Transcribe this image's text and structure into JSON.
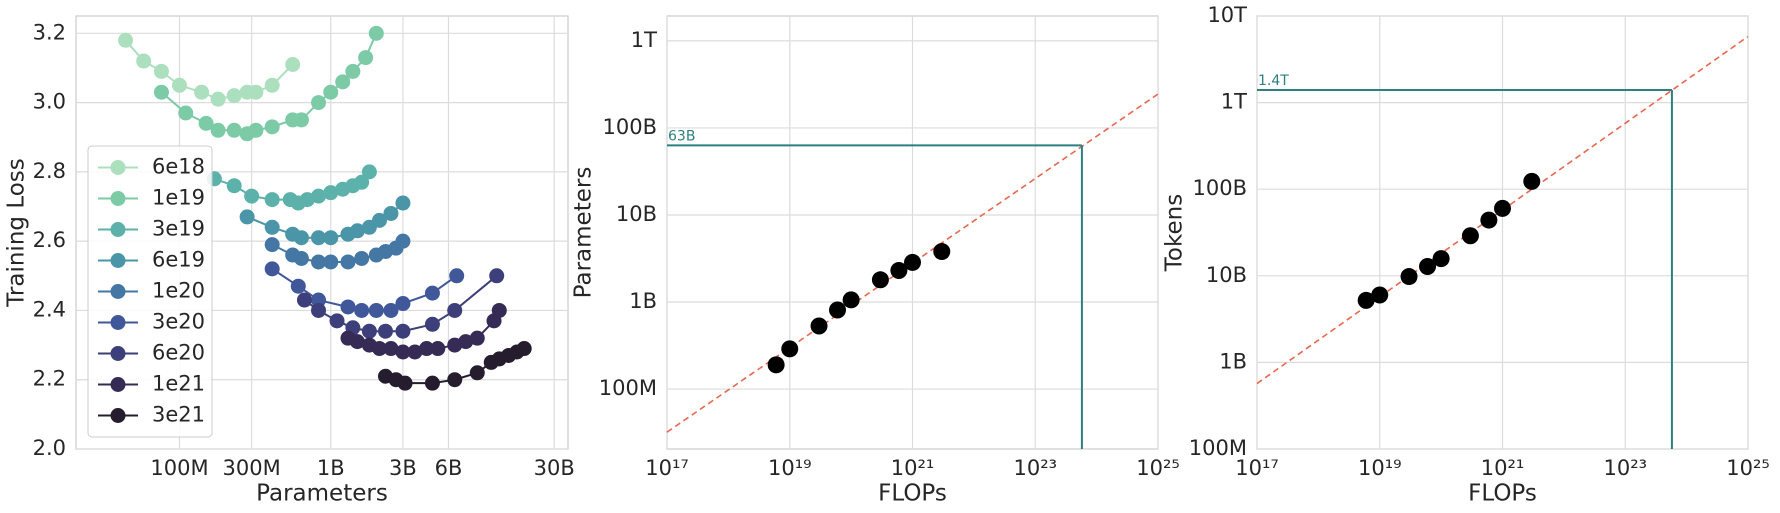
{
  "chart_data": [
    {
      "type": "line",
      "xlabel": "Parameters",
      "ylabel": "Training Loss",
      "xscale": "log",
      "yscale": "linear",
      "xlim": [
        20700000,
        37000000000
      ],
      "ylim": [
        2.0,
        3.25
      ],
      "xticks": [
        {
          "value": 100000000,
          "label": "100M"
        },
        {
          "value": 300000000,
          "label": "300M"
        },
        {
          "value": 1000000000,
          "label": "1B"
        },
        {
          "value": 3000000000,
          "label": "3B"
        },
        {
          "value": 6000000000,
          "label": "6B"
        },
        {
          "value": 30000000000,
          "label": "30B"
        }
      ],
      "yticks": [
        {
          "value": 2.0,
          "label": "2.0"
        },
        2.2,
        2.4,
        2.6,
        2.8,
        {
          "value": 3.0,
          "label": "3.0"
        },
        3.2
      ],
      "grid": true,
      "legend": "lower left",
      "series": [
        {
          "name": "6e18",
          "color": "#acdfbd",
          "x": [
            44000000,
            58000000,
            76000000,
            100000000,
            140000000,
            180000000,
            230000000,
            280000000,
            320000000,
            410000000,
            560000000
          ],
          "values": [
            3.18,
            3.12,
            3.09,
            3.05,
            3.03,
            3.01,
            3.02,
            3.03,
            3.03,
            3.05,
            3.11
          ]
        },
        {
          "name": "1e19",
          "color": "#7dcaa7",
          "x": [
            76000000,
            110000000,
            150000000,
            180000000,
            230000000,
            280000000,
            320000000,
            410000000,
            560000000,
            640000000,
            830000000,
            1000000000,
            1200000000,
            1400000000,
            1700000000,
            2000000000
          ],
          "values": [
            3.03,
            2.97,
            2.94,
            2.92,
            2.92,
            2.91,
            2.92,
            2.93,
            2.95,
            2.95,
            3.0,
            3.03,
            3.06,
            3.09,
            3.13,
            3.2
          ]
        },
        {
          "name": "3e19",
          "color": "#5cb2aa",
          "x": [
            170000000,
            230000000,
            300000000,
            410000000,
            540000000,
            610000000,
            700000000,
            830000000,
            1000000000,
            1200000000,
            1400000000,
            1600000000,
            1800000000
          ],
          "values": [
            2.78,
            2.76,
            2.73,
            2.72,
            2.72,
            2.71,
            2.72,
            2.73,
            2.74,
            2.75,
            2.76,
            2.77,
            2.8
          ]
        },
        {
          "name": "6e19",
          "color": "#4a95a7",
          "x": [
            280000000,
            410000000,
            560000000,
            640000000,
            830000000,
            1000000000,
            1300000000,
            1500000000,
            1800000000,
            2100000000,
            2500000000,
            3000000000
          ],
          "values": [
            2.67,
            2.64,
            2.62,
            2.61,
            2.61,
            2.61,
            2.62,
            2.63,
            2.64,
            2.66,
            2.68,
            2.71
          ]
        },
        {
          "name": "1e20",
          "color": "#4577a5",
          "x": [
            410000000,
            560000000,
            640000000,
            830000000,
            1000000000,
            1300000000,
            1600000000,
            2000000000,
            2300000000,
            2700000000,
            3000000000
          ],
          "values": [
            2.59,
            2.56,
            2.55,
            2.54,
            2.54,
            2.54,
            2.55,
            2.56,
            2.57,
            2.58,
            2.6
          ]
        },
        {
          "name": "3e20",
          "color": "#40589a",
          "x": [
            410000000,
            610000000,
            830000000,
            1300000000,
            1600000000,
            2000000000,
            2500000000,
            3000000000,
            4700000000,
            6800000000
          ],
          "values": [
            2.52,
            2.47,
            2.43,
            2.41,
            2.4,
            2.4,
            2.4,
            2.42,
            2.45,
            2.5
          ]
        },
        {
          "name": "6e20",
          "color": "#3d3f7b",
          "x": [
            670000000,
            830000000,
            1100000000,
            1400000000,
            1800000000,
            2300000000,
            3000000000,
            4700000000,
            6600000000,
            12500000000
          ],
          "values": [
            2.43,
            2.4,
            2.37,
            2.35,
            2.34,
            2.34,
            2.34,
            2.36,
            2.4,
            2.5
          ]
        },
        {
          "name": "1e21",
          "color": "#352b55",
          "x": [
            1300000000,
            1500000000,
            1800000000,
            2100000000,
            2500000000,
            3000000000,
            3600000000,
            4300000000,
            5100000000,
            6600000000,
            7800000000,
            9300000000,
            12000000000,
            13000000000
          ],
          "values": [
            2.32,
            2.31,
            2.3,
            2.29,
            2.29,
            2.28,
            2.28,
            2.29,
            2.29,
            2.3,
            2.31,
            2.32,
            2.37,
            2.4
          ]
        },
        {
          "name": "3e21",
          "color": "#251c2e",
          "x": [
            2300000000,
            2700000000,
            3100000000,
            4700000000,
            6600000000,
            9300000000,
            11500000000,
            13000000000,
            15000000000,
            17000000000,
            19000000000
          ],
          "values": [
            2.21,
            2.2,
            2.19,
            2.19,
            2.2,
            2.22,
            2.25,
            2.26,
            2.27,
            2.28,
            2.29
          ]
        }
      ]
    },
    {
      "type": "scatter",
      "xlabel": "FLOPs",
      "ylabel": "Parameters",
      "xscale": "log",
      "yscale": "log",
      "xlim": [
        1e+17,
        1e+25
      ],
      "ylim": [
        20500000,
        1930000000000
      ],
      "xticks": [
        {
          "value": 1e+17,
          "label": "10¹⁷"
        },
        {
          "value": 1e+19,
          "label": "10¹⁹"
        },
        {
          "value": 1e+21,
          "label": "10²¹"
        },
        {
          "value": 1e+23,
          "label": "10²³"
        },
        {
          "value": 1e+25,
          "label": "10²⁵"
        }
      ],
      "yticks": [
        {
          "value": 100000000,
          "label": "100M"
        },
        {
          "value": 1000000000,
          "label": "1B"
        },
        {
          "value": 10000000000,
          "label": "10B"
        },
        {
          "value": 100000000000,
          "label": "100B"
        },
        {
          "value": 1000000000000,
          "label": "1T"
        }
      ],
      "grid": true,
      "color": "#000000",
      "x": [
        6e+18,
        1e+19,
        3e+19,
        6e+19,
        1e+20,
        3e+20,
        6e+20,
        1e+21,
        3e+21
      ],
      "values": [
        190000000,
        290000000,
        530000000,
        810000000,
        1060000000,
        1800000000,
        2300000000,
        2850000000,
        3800000000
      ],
      "fit": {
        "x": [
          1e+17,
          1e+25
        ],
        "values": [
          32000000,
          245000000000
        ],
        "color": "#e8674f"
      },
      "annotation": {
        "text": "63B",
        "x": 5.76e+23,
        "y": 63000000000,
        "color": "#2f7f80"
      }
    },
    {
      "type": "scatter",
      "xlabel": "FLOPs",
      "ylabel": "Tokens",
      "xscale": "log",
      "yscale": "log",
      "xlim": [
        1e+17,
        1e+25
      ],
      "ylim": [
        100000000,
        10000000000000
      ],
      "xticks": [
        {
          "value": 1e+17,
          "label": "10¹⁷"
        },
        {
          "value": 1e+19,
          "label": "10¹⁹"
        },
        {
          "value": 1e+21,
          "label": "10²¹"
        },
        {
          "value": 1e+23,
          "label": "10²³"
        },
        {
          "value": 1e+25,
          "label": "10²⁵"
        }
      ],
      "yticks": [
        {
          "value": 100000000,
          "label": "100M"
        },
        {
          "value": 1000000000,
          "label": "1B"
        },
        {
          "value": 10000000000,
          "label": "10B"
        },
        {
          "value": 100000000000,
          "label": "100B"
        },
        {
          "value": 1000000000000,
          "label": "1T"
        },
        {
          "value": 10000000000000,
          "label": "10T"
        }
      ],
      "grid": true,
      "color": "#000000",
      "x": [
        6e+18,
        1e+19,
        3e+19,
        6e+19,
        1e+20,
        3e+20,
        6e+20,
        1e+21,
        3e+21
      ],
      "values": [
        5200000000,
        6000000000,
        9800000000,
        12800000000,
        15800000000,
        29000000000,
        44000000000,
        60000000000,
        123000000000
      ],
      "fit": {
        "x": [
          1e+17,
          1e+25
        ],
        "values": [
          570000000,
          5800000000000
        ],
        "color": "#e8674f"
      },
      "annotation": {
        "text": "1.4T",
        "x": 5.76e+23,
        "y": 1400000000000,
        "color": "#2f7f80"
      }
    }
  ]
}
